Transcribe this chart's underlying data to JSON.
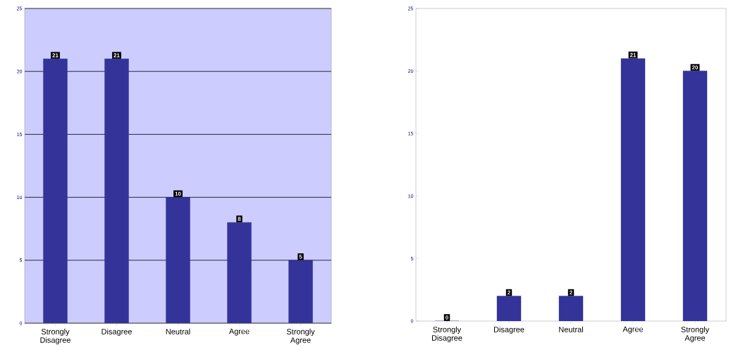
{
  "chart_data": [
    {
      "type": "bar",
      "categories": [
        "Strongly Disagree",
        "Disagree",
        "Neutral",
        "Agree",
        "Strongly Agree"
      ],
      "values": [
        21,
        21,
        10,
        8,
        5
      ],
      "color": "#333399",
      "ylim": [
        0,
        25
      ],
      "yticks": [
        0,
        5,
        10,
        15,
        20,
        25
      ],
      "grid": "y",
      "data_labels": true
    },
    {
      "type": "bar",
      "categories": [
        "Strongly Disagree",
        "Disagree",
        "Neutral",
        "Agree",
        "Strongly Agree"
      ],
      "values": [
        0,
        2,
        2,
        21,
        20
      ],
      "color": "#333399",
      "ylim": [
        0,
        25
      ],
      "yticks": [
        0,
        5,
        10,
        15,
        20,
        25
      ],
      "grid": false,
      "data_labels": true
    }
  ]
}
